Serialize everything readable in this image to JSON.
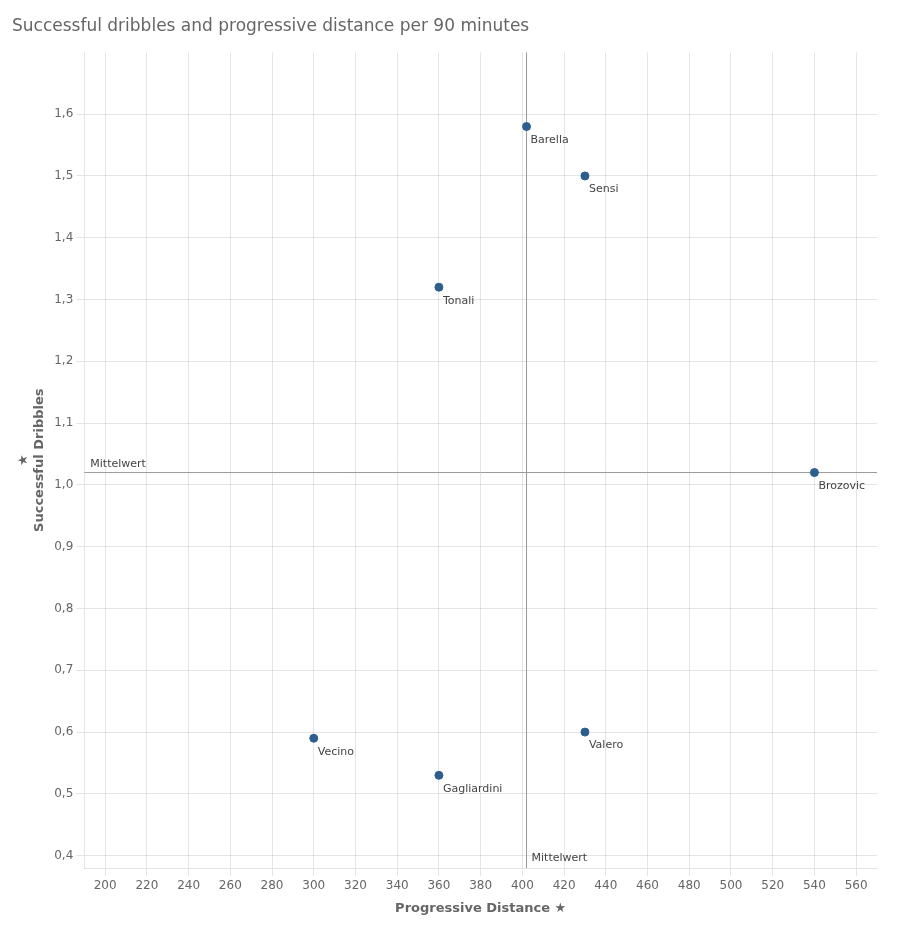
{
  "chart_data": {
    "type": "scatter",
    "title": "Successful dribbles and progressive distance per 90 minutes",
    "xlabel": "Progressive Distance ★",
    "ylabel": "★\nSuccessful Dribbles",
    "x": [
      402,
      430,
      360,
      540,
      300,
      360,
      430
    ],
    "values": [
      1.58,
      1.5,
      1.32,
      1.02,
      0.59,
      0.53,
      0.6
    ],
    "point_labels": [
      "Barella",
      "Sensi",
      "Tonali",
      "Brozovic",
      "Vecino",
      "Gagliardini",
      "Valero"
    ],
    "color": "#2d5f8e",
    "reference_lines": [
      {
        "axis": "y",
        "value": 1.02,
        "label": "Mittelwert"
      },
      {
        "axis": "x",
        "value": 402,
        "label": "Mittelwert"
      }
    ],
    "xlim": [
      190,
      570
    ],
    "ylim": [
      0.38,
      1.7
    ],
    "xticks": [
      200,
      220,
      240,
      260,
      280,
      300,
      320,
      340,
      360,
      380,
      400,
      420,
      440,
      460,
      480,
      500,
      520,
      540,
      560
    ],
    "yticks": [
      {
        "value": 0.4,
        "label": "0,4"
      },
      {
        "value": 0.5,
        "label": "0,5"
      },
      {
        "value": 0.6,
        "label": "0,6"
      },
      {
        "value": 0.7,
        "label": "0,7"
      },
      {
        "value": 0.8,
        "label": "0,8"
      },
      {
        "value": 0.9,
        "label": "0,9"
      },
      {
        "value": 1.0,
        "label": "1,0"
      },
      {
        "value": 1.1,
        "label": "1,1"
      },
      {
        "value": 1.2,
        "label": "1,2"
      },
      {
        "value": 1.3,
        "label": "1,3"
      },
      {
        "value": 1.4,
        "label": "1,4"
      },
      {
        "value": 1.5,
        "label": "1,5"
      },
      {
        "value": 1.6,
        "label": "1,6"
      }
    ],
    "grid": true
  }
}
